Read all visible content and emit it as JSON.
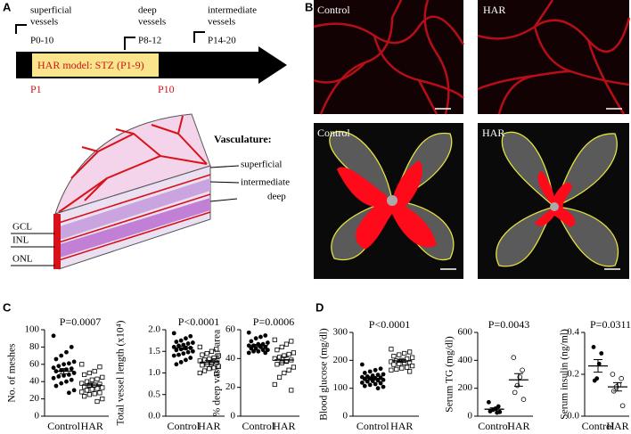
{
  "panel_a": {
    "label": "A",
    "timeline": [
      {
        "line1": "superficial",
        "line2": "vessels",
        "range": "P0-10"
      },
      {
        "line1": "deep",
        "line2": "vessels",
        "range": "P8-12"
      },
      {
        "line1": "intermediate",
        "line2": "vessels",
        "range": "P14-20"
      }
    ],
    "model": "HAR model: STZ (P1-9)",
    "start": "P1",
    "end": "P10",
    "vasculature_title": "Vasculature:",
    "layers": [
      "superficial",
      "intermediate",
      "deep"
    ],
    "retina_layers": [
      "GCL",
      "INL",
      "ONL"
    ]
  },
  "panel_b": {
    "label": "B",
    "images": [
      {
        "label": "Control"
      },
      {
        "label": "HAR"
      },
      {
        "label": "Control"
      },
      {
        "label": "HAR"
      }
    ]
  },
  "panel_c": {
    "label": "C"
  },
  "panel_d": {
    "label": "D"
  },
  "chart_data": [
    {
      "type": "dot",
      "title": "P=0.0007",
      "ylabel": "No. of meshes",
      "categories": [
        "Control",
        "HAR"
      ],
      "values": [
        [
          93,
          80,
          74,
          70,
          66,
          63,
          61,
          60,
          58,
          56,
          55,
          54,
          53,
          52,
          50,
          48,
          47,
          46,
          44,
          42,
          40,
          38,
          35,
          30,
          27
        ],
        [
          60,
          57,
          52,
          50,
          48,
          45,
          43,
          42,
          40,
          38,
          37,
          36,
          35,
          34,
          33,
          32,
          31,
          30,
          28,
          27,
          26,
          25,
          23,
          20,
          17
        ]
      ],
      "means": [
        52,
        36
      ],
      "errors": [
        3,
        2.3
      ],
      "ylim": [
        0,
        100
      ],
      "yticks": [
        0,
        20,
        40,
        60,
        80,
        100
      ],
      "markers": [
        "filled-circle",
        "open-square"
      ],
      "color": "#000000"
    },
    {
      "type": "dot",
      "title": "P<0.0001",
      "ylabel": "Total vessel length (x10⁴)",
      "categories": [
        "Control",
        "HAR"
      ],
      "values": [
        [
          1.92,
          1.85,
          1.8,
          1.75,
          1.72,
          1.7,
          1.68,
          1.65,
          1.63,
          1.6,
          1.58,
          1.57,
          1.55,
          1.53,
          1.5,
          1.48,
          1.45,
          1.42,
          1.4,
          1.35,
          1.3,
          1.25,
          1.2
        ],
        [
          1.6,
          1.55,
          1.5,
          1.45,
          1.42,
          1.4,
          1.35,
          1.32,
          1.3,
          1.28,
          1.25,
          1.22,
          1.2,
          1.18,
          1.15,
          1.12,
          1.1,
          1.05,
          1.0,
          0.98
        ]
      ],
      "means": [
        1.58,
        1.25
      ],
      "errors": [
        0.04,
        0.04
      ],
      "ylim": [
        0,
        2
      ],
      "yticks": [
        {
          "value": 0,
          "label": "0.0"
        },
        {
          "value": 0.5,
          "label": "0.5"
        },
        {
          "value": 1,
          "label": "1.0"
        },
        {
          "value": 1.5,
          "label": "1.5"
        },
        {
          "value": 2,
          "label": "2.0"
        }
      ],
      "markers": [
        "filled-circle",
        "open-square"
      ],
      "color": "#000000"
    },
    {
      "type": "dot",
      "title": "P=0.0006",
      "ylabel": "% deep vascular area",
      "categories": [
        "Control",
        "HAR"
      ],
      "values": [
        [
          58,
          56,
          55,
          54,
          52,
          51,
          50,
          50,
          49,
          49,
          48,
          48,
          47,
          47,
          46,
          46,
          45,
          45,
          44,
          44
        ],
        [
          53,
          52,
          50,
          48,
          46,
          44,
          43,
          42,
          41,
          40,
          39,
          38,
          37,
          36,
          34,
          32,
          30,
          27,
          22,
          18
        ]
      ],
      "means": [
        49,
        39
      ],
      "errors": [
        0.8,
        2
      ],
      "ylim": [
        0,
        60
      ],
      "yticks": [
        0,
        20,
        40,
        60
      ],
      "markers": [
        "filled-circle",
        "open-square"
      ],
      "color": "#000000"
    },
    {
      "type": "dot",
      "title": "P<0.0001",
      "ylabel": "Blood glucose (mg/dl)",
      "categories": [
        "Control",
        "HAR"
      ],
      "values": [
        [
          185,
          170,
          165,
          160,
          155,
          150,
          148,
          145,
          142,
          140,
          138,
          136,
          135,
          133,
          130,
          128,
          126,
          124,
          120,
          118,
          115,
          112,
          108,
          105,
          100
        ],
        [
          240,
          230,
          225,
          220,
          215,
          210,
          205,
          200,
          198,
          195,
          192,
          190,
          188,
          185,
          180,
          175,
          172,
          168,
          165,
          160
        ]
      ],
      "means": [
        135,
        198
      ],
      "errors": [
        4,
        5
      ],
      "ylim": [
        0,
        300
      ],
      "yticks": [
        0,
        100,
        200,
        300
      ],
      "markers": [
        "filled-circle",
        "open-square"
      ],
      "color": "#000000"
    },
    {
      "type": "dot",
      "title": "P=0.0043",
      "ylabel": "Serum TG (mg/dl)",
      "categories": [
        "Control",
        "HAR"
      ],
      "values": [
        [
          100,
          70,
          55,
          45,
          35,
          30,
          25
        ],
        [
          420,
          330,
          280,
          220,
          170,
          120
        ]
      ],
      "means": [
        50,
        260
      ],
      "errors": [
        10,
        45
      ],
      "ylim": [
        0,
        600
      ],
      "yticks": [
        0,
        200,
        400,
        600
      ],
      "markers": [
        "filled-circle",
        "open-circle"
      ],
      "color": "#000000"
    },
    {
      "type": "dot",
      "title": "P=0.0311",
      "ylabel": "Serum insulin (ng/ml)",
      "categories": [
        "Control",
        "HAR"
      ],
      "values": [
        [
          0.33,
          0.3,
          0.25,
          0.18,
          0.17
        ],
        [
          0.2,
          0.18,
          0.15,
          0.14,
          0.12,
          0.05
        ]
      ],
      "means": [
        0.24,
        0.14
      ],
      "errors": [
        0.03,
        0.02
      ],
      "ylim": [
        0,
        0.4
      ],
      "yticks": [
        {
          "value": 0,
          "label": "0.0"
        },
        {
          "value": 0.2,
          "label": "0.2"
        },
        {
          "value": 0.4,
          "label": "0.4"
        }
      ],
      "markers": [
        "filled-circle",
        "open-circle"
      ],
      "color": "#000000"
    }
  ]
}
